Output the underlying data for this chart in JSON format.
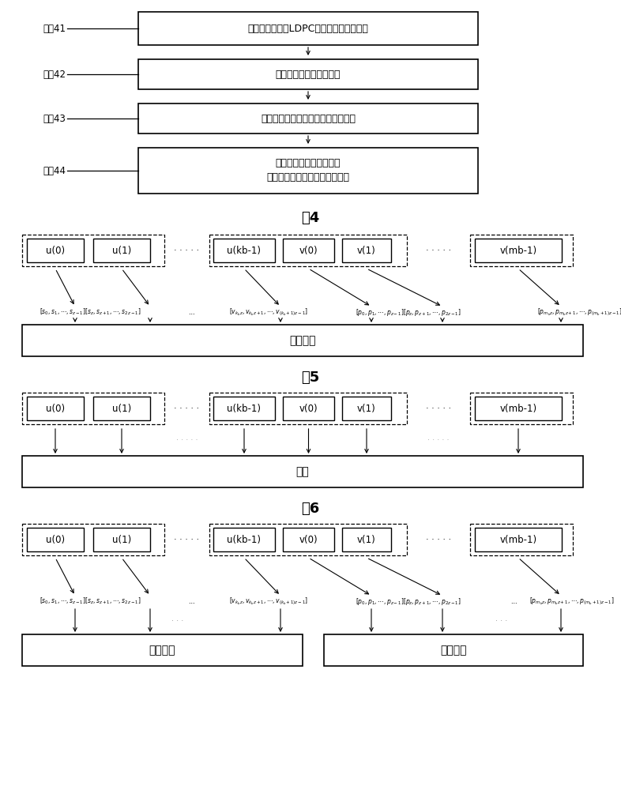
{
  "bg_color": "#ffffff",
  "fig4_steps": [
    {
      "label": "步骤41",
      "text1": "对信息序列进行LDPC编码处理，得到码字",
      "text2": ""
    },
    {
      "label": "步骤42",
      "text1": "对所述码字进行交织处理",
      "text2": ""
    },
    {
      "label": "步骤43",
      "text1": "对经过交织处理的码字进行调制处理",
      "text2": ""
    },
    {
      "label": "步骤44",
      "text1": "将完成调制处理而得到的",
      "text2": "调制符号映射到对应的子载波上"
    }
  ],
  "fig4_title": "图4",
  "fig5_title": "图5",
  "fig5_bottom": "比特交织",
  "fig6_title": "图6",
  "fig6_bottom1": "比特交织",
  "fig6_bottom2": "比特交织",
  "fig56_inner_labels": [
    "u(0)",
    "u(1)",
    "u(kb-1)",
    "v(0)",
    "v(1)",
    "v(mb-1)"
  ],
  "fig6_bottom_text": "交织"
}
